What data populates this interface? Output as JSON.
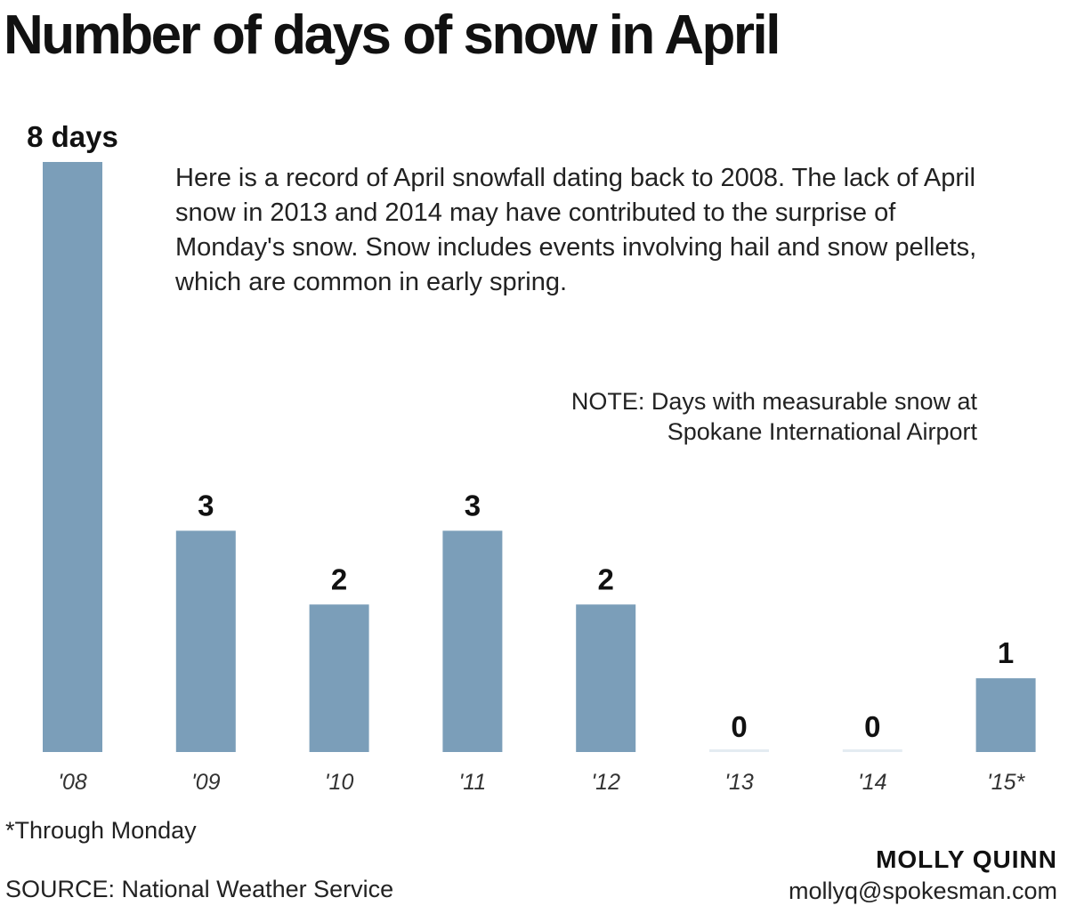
{
  "chart_data": {
    "type": "bar",
    "title": "Number of days of snow in April",
    "categories": [
      "'08",
      "'09",
      "'10",
      "'11",
      "'12",
      "'13",
      "'14",
      "'15*"
    ],
    "values": [
      8,
      3,
      2,
      3,
      2,
      0,
      0,
      1
    ],
    "value_labels": [
      "8 days",
      "3",
      "2",
      "3",
      "2",
      "0",
      "0",
      "1"
    ],
    "ylim": [
      0,
      8
    ],
    "grid": false,
    "bar_color": "#7b9eb9",
    "zero_bar_color": "#e4ecf2",
    "description": "Here is a record of April snowfall dating back to 2008. The lack of April snow in 2013 and 2014 may have contributed to the surprise of Monday's snow. Snow includes events involving hail and snow pellets, which are common in early spring.",
    "note_lines": [
      "NOTE: Days with measurable snow at",
      "Spokane International Airport"
    ],
    "footnote": "*Through Monday",
    "source": "SOURCE: National Weather Service",
    "credit_name": "MOLLY QUINN",
    "credit_email": "mollyq@spokesman.com"
  }
}
